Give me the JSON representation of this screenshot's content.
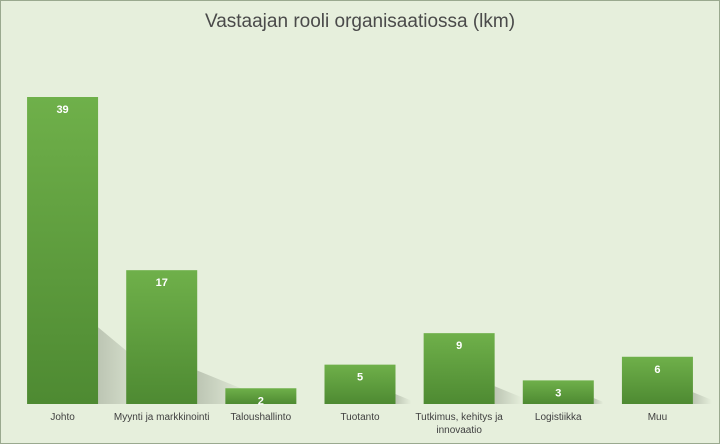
{
  "chart_data": {
    "type": "bar",
    "title": "Vastaajan rooli organisaatiossa (lkm)",
    "xlabel": "",
    "ylabel": "",
    "categories": [
      "Johto",
      "Myynti ja markkinointi",
      "Taloushallinto",
      "Tuotanto",
      "Tutkimus, kehitys ja innovaatio",
      "Logistiikka",
      "Muu"
    ],
    "values": [
      39,
      17,
      2,
      5,
      9,
      3,
      6
    ],
    "ylim": [
      0,
      39
    ],
    "grid": false,
    "legend": "none",
    "data_labels": true
  },
  "colors": {
    "background": "#e6efdc",
    "bar_top": "#6fb04a",
    "bar_bottom": "#4e8a32",
    "shadow": "#9aa392"
  }
}
